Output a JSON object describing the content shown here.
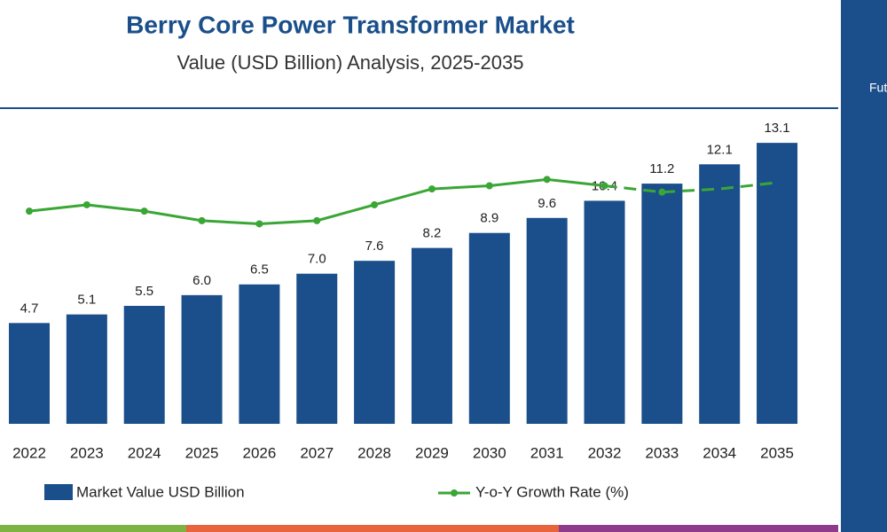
{
  "chart_data": {
    "type": "bar",
    "title": "Berry Core Power Transformer Market",
    "subtitle": "Value (USD Billion) Analysis, 2025-2035",
    "categories": [
      "2022",
      "2023",
      "2024",
      "2025",
      "2026",
      "2027",
      "2028",
      "2029",
      "2030",
      "2031",
      "2032",
      "2033",
      "2034",
      "2035"
    ],
    "series": [
      {
        "name": "Market Value USD Billion",
        "type": "bar",
        "color": "#1a4f8b",
        "values": [
          4.7,
          5.1,
          5.5,
          6.0,
          6.5,
          7.0,
          7.6,
          8.2,
          8.9,
          9.6,
          10.4,
          11.2,
          12.1,
          13.1
        ],
        "value_labels": [
          "4.7",
          "5.1",
          "5.5",
          "6.0",
          "6.5",
          "7.0",
          "7.6",
          "8.2",
          "8.9",
          "9.6",
          "10.4",
          "11.2",
          "12.1",
          "13.1"
        ]
      },
      {
        "name": "Y-o-Y Growth Rate (%)",
        "type": "line",
        "color": "#3aa635",
        "axis": "y2",
        "values": [
          6.7,
          6.9,
          6.7,
          6.4,
          6.3,
          6.4,
          6.9,
          7.4,
          7.5,
          7.7,
          7.5,
          7.3,
          7.4,
          7.6
        ]
      }
    ],
    "dashed_from": "2032",
    "ylim": [
      0,
      14.8
    ],
    "y2lim": [
      0,
      10
    ]
  },
  "sidebar": {
    "logo": "Fut"
  }
}
